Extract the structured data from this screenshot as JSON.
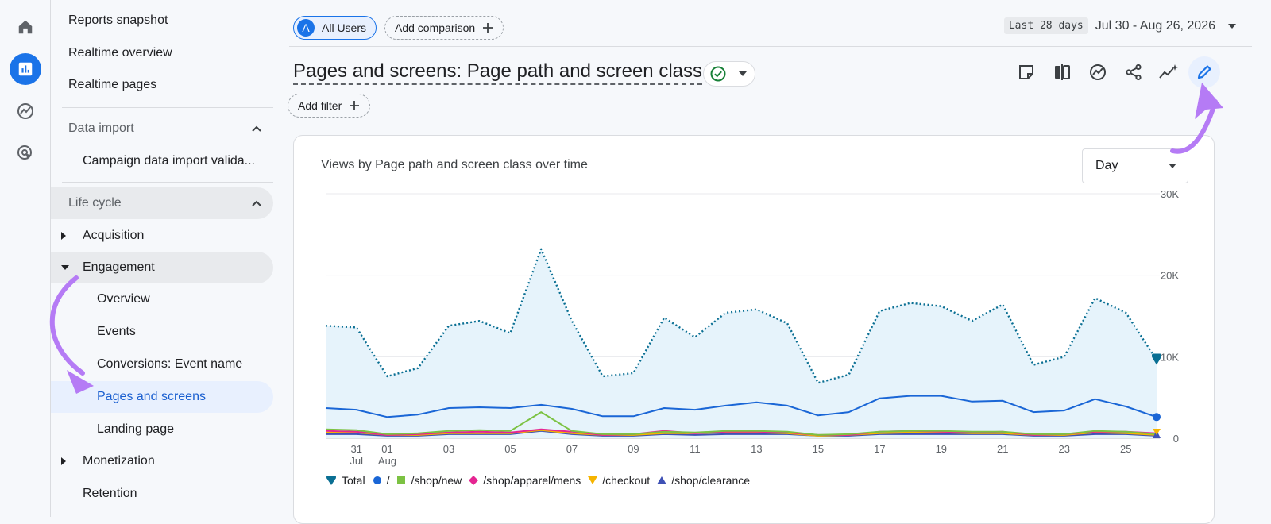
{
  "rail": {
    "items": [
      {
        "icon": "home-icon"
      },
      {
        "icon": "reports-icon",
        "active": true
      },
      {
        "icon": "explore-icon"
      },
      {
        "icon": "advertising-icon"
      }
    ]
  },
  "sidebar": {
    "reports_snapshot": "Reports snapshot",
    "realtime_overview": "Realtime overview",
    "realtime_pages": "Realtime pages",
    "data_import": "Data import",
    "campaign_import": "Campaign data import valida...",
    "life_cycle": "Life cycle",
    "acquisition": "Acquisition",
    "engagement": "Engagement",
    "overview": "Overview",
    "events": "Events",
    "conversions": "Conversions: Event name",
    "pages_and_screens": "Pages and screens",
    "landing_page": "Landing page",
    "monetization": "Monetization",
    "retention": "Retention"
  },
  "header": {
    "avatar_letter": "A",
    "all_users": "All Users",
    "add_comparison": "Add comparison",
    "date_badge": "Last 28 days",
    "date_range": "Jul 30 - Aug 26, 2026",
    "title": "Pages and screens: Page path and screen class",
    "add_filter": "Add filter"
  },
  "colors": {
    "accent": "#1a73e8",
    "total": "#0a6f93",
    "total_fill": "#e6f3fb",
    "root": "#1a66d6",
    "shop_new": "#7cc243",
    "apparel_mens": "#e52592",
    "checkout": "#f6b400",
    "clearance": "#3f51b5",
    "annotation": "#b57bf5"
  },
  "card": {
    "title": "Views by Page path and screen class over time",
    "granularity": "Day"
  },
  "chart_data": {
    "type": "line",
    "x": [
      "Jul 30",
      "Jul 31",
      "Aug 01",
      "Aug 02",
      "Aug 03",
      "Aug 04",
      "Aug 05",
      "Aug 06",
      "Aug 07",
      "Aug 08",
      "Aug 09",
      "Aug 10",
      "Aug 11",
      "Aug 12",
      "Aug 13",
      "Aug 14",
      "Aug 15",
      "Aug 16",
      "Aug 17",
      "Aug 18",
      "Aug 19",
      "Aug 20",
      "Aug 21",
      "Aug 22",
      "Aug 23",
      "Aug 24",
      "Aug 25",
      "Aug 26"
    ],
    "x_tick_labels": [
      {
        "index": 1,
        "label": "31",
        "sub": "Jul"
      },
      {
        "index": 2,
        "label": "01",
        "sub": "Aug"
      },
      {
        "index": 4,
        "label": "03"
      },
      {
        "index": 6,
        "label": "05"
      },
      {
        "index": 8,
        "label": "07"
      },
      {
        "index": 10,
        "label": "09"
      },
      {
        "index": 12,
        "label": "11"
      },
      {
        "index": 14,
        "label": "13"
      },
      {
        "index": 16,
        "label": "15"
      },
      {
        "index": 18,
        "label": "17"
      },
      {
        "index": 20,
        "label": "19"
      },
      {
        "index": 22,
        "label": "21"
      },
      {
        "index": 24,
        "label": "23"
      },
      {
        "index": 26,
        "label": "25"
      }
    ],
    "y_ticks": [
      "0",
      "10K",
      "20K",
      "30K"
    ],
    "ylim": [
      0,
      30000
    ],
    "series": [
      {
        "name": "Total",
        "values": [
          13800,
          13600,
          7600,
          8600,
          13800,
          14400,
          12900,
          23200,
          14400,
          7600,
          8000,
          14800,
          12400,
          15400,
          15800,
          14100,
          6800,
          7800,
          15600,
          16600,
          16200,
          14400,
          16400,
          9000,
          10000,
          17200,
          15400,
          9600
        ]
      },
      {
        "name": "/",
        "values": [
          3700,
          3500,
          2600,
          2900,
          3700,
          3800,
          3700,
          4100,
          3600,
          2700,
          2700,
          3700,
          3500,
          4000,
          4400,
          4000,
          2800,
          3200,
          4900,
          5200,
          5200,
          4500,
          4600,
          3200,
          3400,
          4800,
          3900,
          2600
        ]
      },
      {
        "name": "/shop/new",
        "values": [
          1100,
          1000,
          500,
          600,
          900,
          1000,
          900,
          3200,
          900,
          500,
          500,
          800,
          700,
          900,
          900,
          800,
          400,
          500,
          800,
          900,
          900,
          800,
          800,
          500,
          500,
          900,
          800,
          500
        ]
      },
      {
        "name": "/shop/apparel/mens",
        "values": [
          900,
          800,
          400,
          500,
          700,
          800,
          700,
          1100,
          800,
          400,
          500,
          900,
          600,
          800,
          800,
          700,
          400,
          400,
          800,
          900,
          800,
          700,
          800,
          400,
          500,
          800,
          800,
          600
        ]
      },
      {
        "name": "/checkout",
        "values": [
          700,
          700,
          400,
          400,
          600,
          600,
          600,
          1000,
          600,
          400,
          400,
          600,
          600,
          700,
          700,
          600,
          300,
          400,
          600,
          700,
          700,
          600,
          600,
          400,
          400,
          700,
          600,
          400
        ]
      },
      {
        "name": "/shop/clearance",
        "values": [
          500,
          500,
          300,
          300,
          500,
          500,
          500,
          900,
          500,
          300,
          300,
          500,
          400,
          500,
          500,
          500,
          300,
          300,
          500,
          500,
          500,
          500,
          500,
          300,
          300,
          500,
          500,
          300
        ]
      }
    ]
  }
}
